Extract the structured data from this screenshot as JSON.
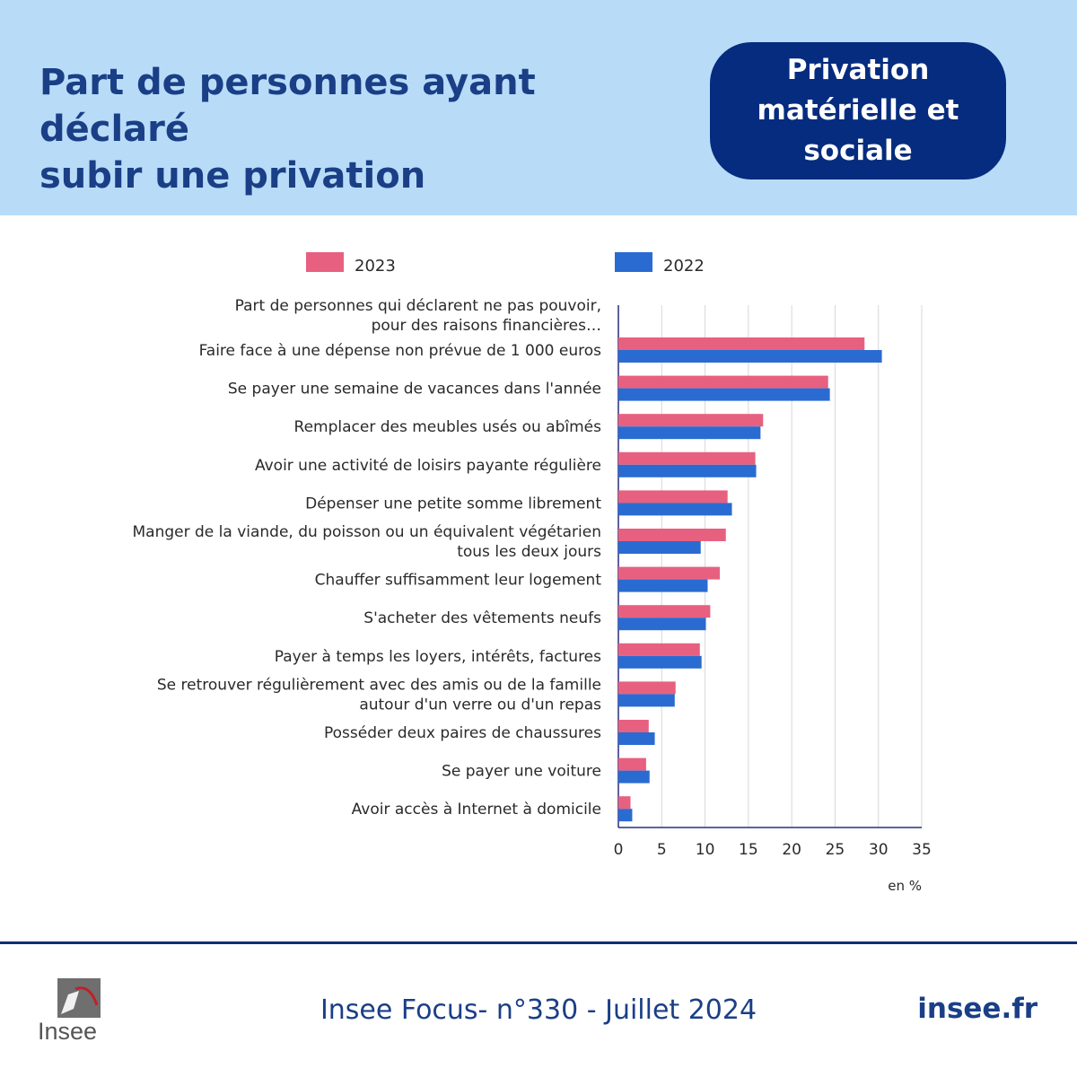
{
  "header": {
    "title_lines": [
      "Part de personnes ayant déclaré",
      "subir une privation"
    ],
    "badge_lines": [
      "Privation",
      "matérielle et",
      "sociale"
    ]
  },
  "footer": {
    "logo_text": "Insee",
    "publication": "Insee Focus- n°330 - Juillet 2024",
    "site": "insee.fr"
  },
  "colors": {
    "header_bg": "#b8dcf8",
    "title": "#1a3f86",
    "badge_bg": "#052c7e",
    "series_2023": "#e8607f",
    "series_2022": "#2a6bd1"
  },
  "chart_data": {
    "type": "bar",
    "orientation": "horizontal",
    "header_label": [
      "Part de personnes qui déclarent ne pas pouvoir,",
      "pour des raisons financières…"
    ],
    "categories": [
      [
        "Faire face à une dépense non prévue de 1 000 euros"
      ],
      [
        "Se payer une semaine de vacances dans l'année"
      ],
      [
        "Remplacer des meubles usés ou abîmés"
      ],
      [
        "Avoir une activité de loisirs payante régulière"
      ],
      [
        "Dépenser une petite somme librement"
      ],
      [
        "Manger de la viande, du poisson ou un équivalent végétarien",
        "tous les deux jours"
      ],
      [
        "Chauffer suffisamment leur logement"
      ],
      [
        "S'acheter des vêtements neufs"
      ],
      [
        "Payer à temps les loyers, intérêts, factures"
      ],
      [
        "Se retrouver régulièrement avec des amis ou de la famille",
        "autour d'un verre ou d'un repas"
      ],
      [
        "Posséder deux paires de chaussures"
      ],
      [
        "Se payer une voiture"
      ],
      [
        "Avoir accès à Internet à domicile"
      ]
    ],
    "series": [
      {
        "name": "2023",
        "color": "#e8607f",
        "values": [
          28.4,
          24.2,
          16.7,
          15.8,
          12.6,
          12.4,
          11.7,
          10.6,
          9.4,
          6.6,
          3.5,
          3.2,
          1.4
        ]
      },
      {
        "name": "2022",
        "color": "#2a6bd1",
        "values": [
          30.4,
          24.4,
          16.4,
          15.9,
          13.1,
          9.5,
          10.3,
          10.1,
          9.6,
          6.5,
          4.2,
          3.6,
          1.6
        ]
      }
    ],
    "xlim": [
      0,
      35
    ],
    "xticks": [
      0,
      5,
      10,
      15,
      20,
      25,
      30,
      35
    ],
    "unit_label": "en %",
    "grid": true,
    "legend_position": "top"
  }
}
